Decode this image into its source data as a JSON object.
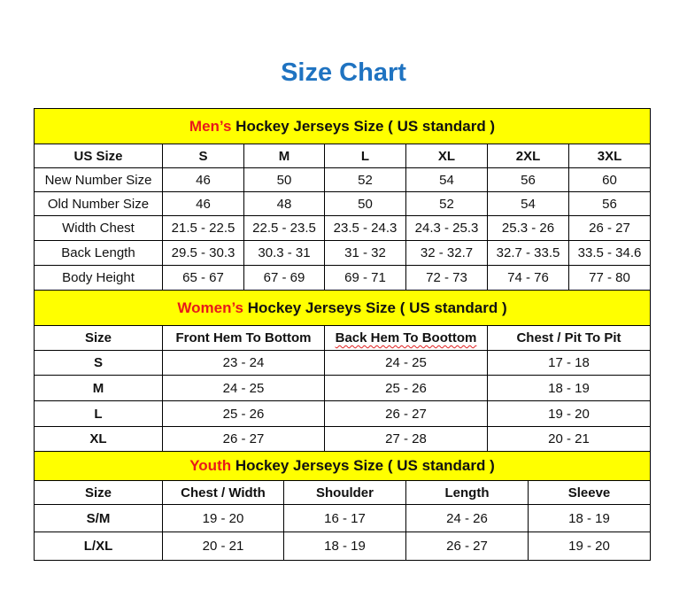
{
  "title": "Size Chart",
  "colors": {
    "title": "#1f73c1",
    "section_bg": "#ffff00",
    "highlight": "#e8191b"
  },
  "mens": {
    "heading_highlight": "Men’s",
    "heading_rest": " Hockey Jerseys Size ( US standard )",
    "columns": [
      "US Size",
      "S",
      "M",
      "L",
      "XL",
      "2XL",
      "3XL"
    ],
    "rows": [
      [
        "New Number Size",
        "46",
        "50",
        "52",
        "54",
        "56",
        "60"
      ],
      [
        "Old Number Size",
        "46",
        "48",
        "50",
        "52",
        "54",
        "56"
      ],
      [
        "Width Chest",
        "21.5 - 22.5",
        "22.5 - 23.5",
        "23.5 - 24.3",
        "24.3 - 25.3",
        "25.3 - 26",
        "26 - 27"
      ],
      [
        "Back Length",
        "29.5 - 30.3",
        "30.3 - 31",
        "31 - 32",
        "32 - 32.7",
        "32.7 - 33.5",
        "33.5 - 34.6"
      ],
      [
        "Body Height",
        "65 - 67",
        "67 - 69",
        "69 - 71",
        "72 - 73",
        "74 - 76",
        "77 - 80"
      ]
    ]
  },
  "womens": {
    "heading_highlight": "Women’s",
    "heading_rest": " Hockey Jerseys Size ( US standard )",
    "columns": [
      "Size",
      "Front Hem To Bottom",
      "Back Hem To Boottom",
      "Chest / Pit To Pit"
    ],
    "rows": [
      [
        "S",
        "23 - 24",
        "24 - 25",
        "17 - 18"
      ],
      [
        "M",
        "24 - 25",
        "25 - 26",
        "18 - 19"
      ],
      [
        "L",
        "25 - 26",
        "26 - 27",
        "19 - 20"
      ],
      [
        "XL",
        "26 - 27",
        "27 - 28",
        "20 - 21"
      ]
    ]
  },
  "youth": {
    "heading_highlight": "Youth",
    "heading_rest": " Hockey Jerseys Size ( US standard )",
    "columns": [
      "Size",
      "Chest / Width",
      "Shoulder",
      "Length",
      "Sleeve"
    ],
    "rows": [
      [
        "S/M",
        "19 - 20",
        "16 - 17",
        "24 - 26",
        "18 - 19"
      ],
      [
        "L/XL",
        "20 - 21",
        "18 - 19",
        "26 - 27",
        "19 - 20"
      ]
    ]
  }
}
